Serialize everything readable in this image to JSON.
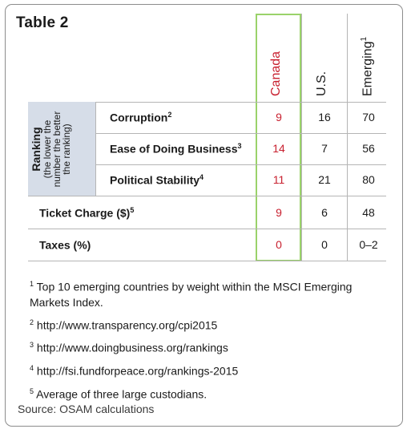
{
  "title": "Table 2",
  "columns": [
    {
      "label": "Canada",
      "sup": ""
    },
    {
      "label": "U.S.",
      "sup": ""
    },
    {
      "label": "Emerging",
      "sup": "1"
    }
  ],
  "ranking_group": {
    "label": "Ranking",
    "sublabel_1": "(the lower the",
    "sublabel_2": "number the better",
    "sublabel_3": "the ranking)"
  },
  "rows": [
    {
      "label": "Corruption",
      "sup": "2",
      "values": [
        "9",
        "16",
        "70"
      ]
    },
    {
      "label": "Ease of Doing Business",
      "sup": "3",
      "values": [
        "14",
        "7",
        "56"
      ]
    },
    {
      "label": "Political Stability",
      "sup": "4",
      "values": [
        "11",
        "21",
        "80"
      ]
    },
    {
      "label": "Ticket Charge ($)",
      "sup": "5",
      "values": [
        "9",
        "6",
        "48"
      ]
    },
    {
      "label": "Taxes (%)",
      "sup": "",
      "values": [
        "0",
        "0",
        "0–2"
      ]
    }
  ],
  "footnotes": [
    {
      "num": "1",
      "text": "Top 10 emerging countries by weight within the MSCI Emerging Markets Index."
    },
    {
      "num": "2",
      "text": "http://www.transparency.org/cpi2015"
    },
    {
      "num": "3",
      "text": "http://www.doingbusiness.org/rankings"
    },
    {
      "num": "4",
      "text": "http://fsi.fundforpeace.org/rankings-2015"
    },
    {
      "num": "5",
      "text": "Average of three large custodians."
    }
  ],
  "source": "Source: OSAM calculations",
  "colors": {
    "canada": "#c8202f",
    "highlight_border": "#9ad26a",
    "ranking_bg": "#d6dde8"
  }
}
